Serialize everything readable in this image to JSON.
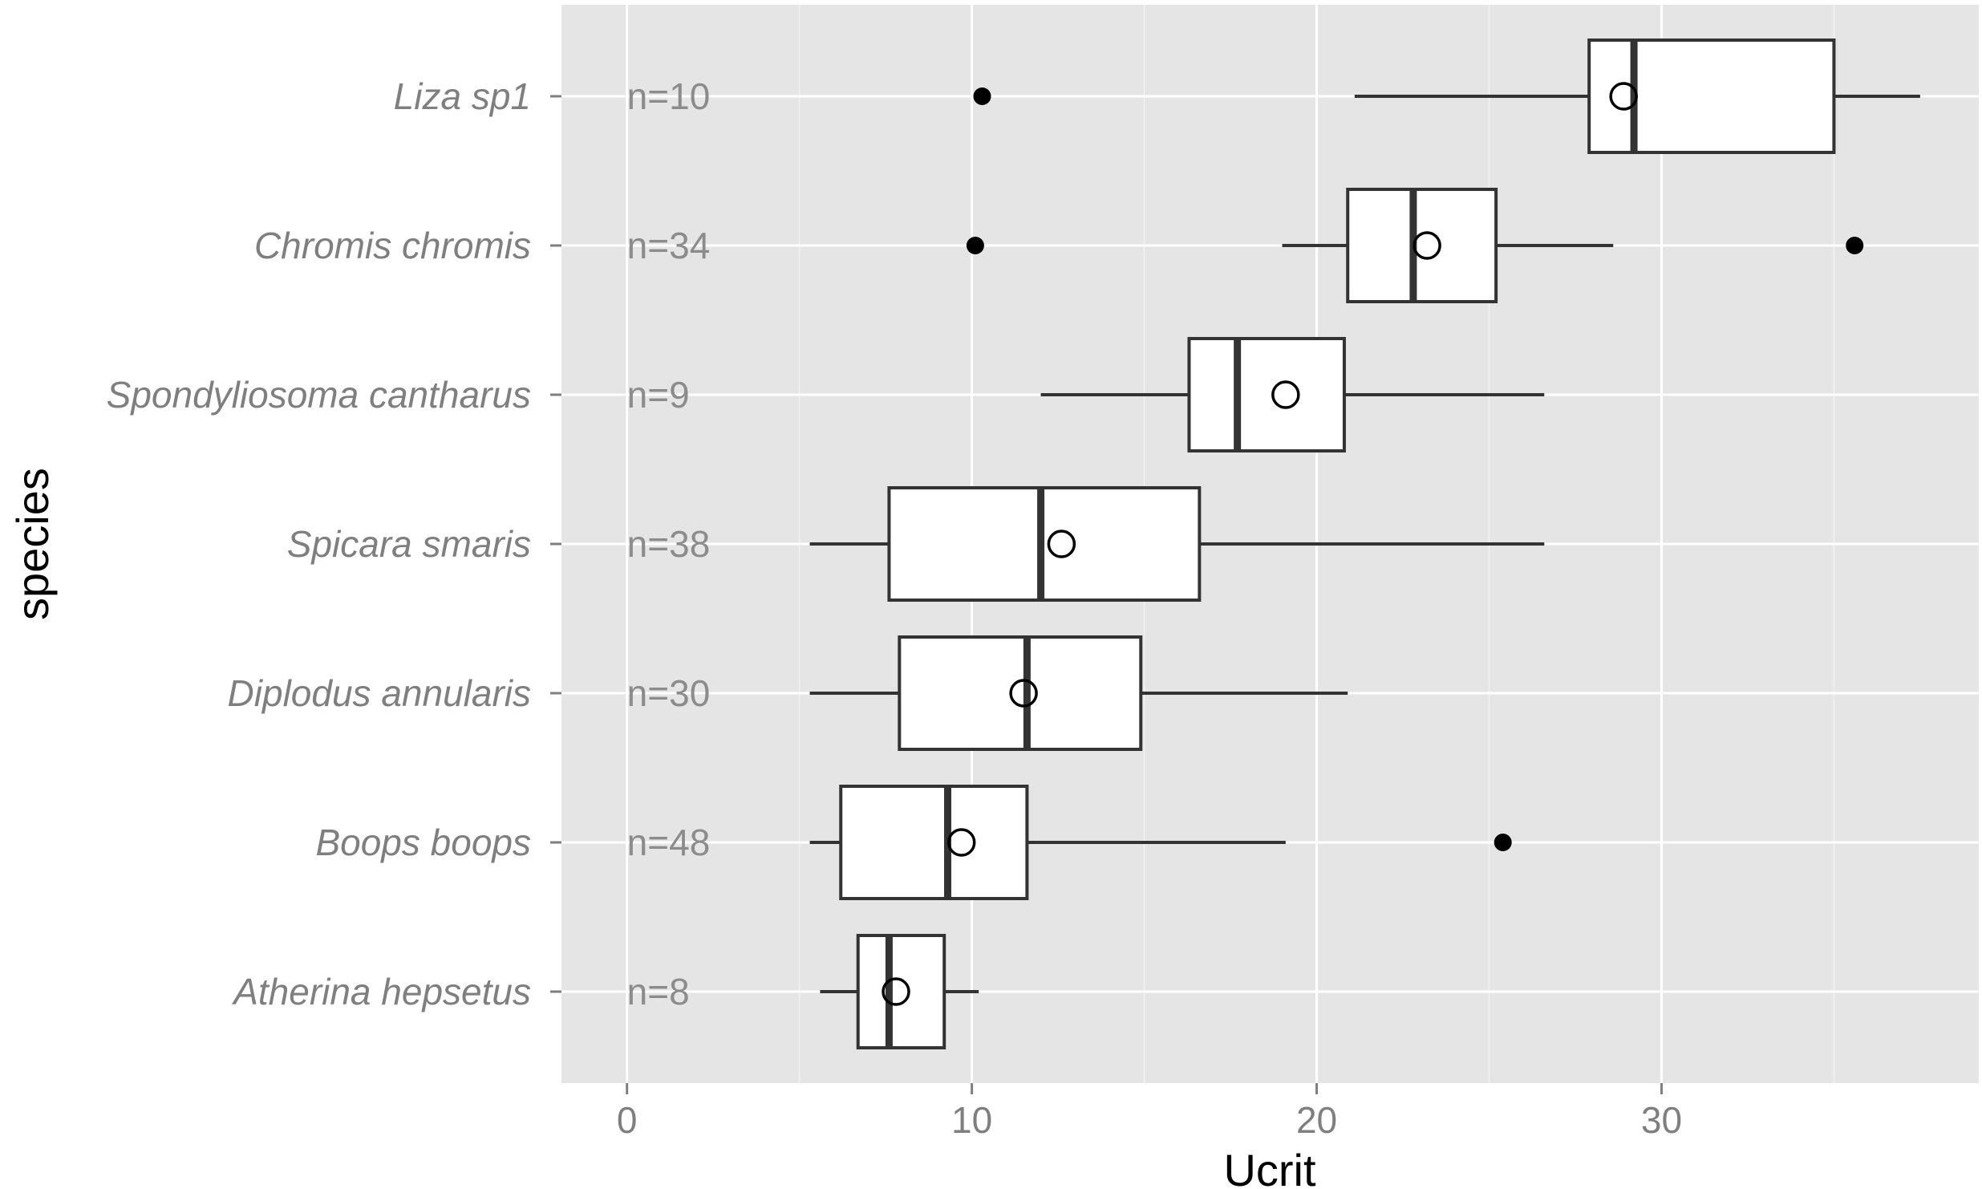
{
  "chart_data": {
    "type": "boxplot",
    "orientation": "horizontal",
    "xlabel": "Ucrit",
    "ylabel": "species",
    "xlim": [
      -1.9,
      39.2
    ],
    "x_ticks": [
      0,
      10,
      20,
      30
    ],
    "x_tick_labels": [
      "0",
      "10",
      "20",
      "30"
    ],
    "x_minor_gridlines": [
      5,
      15,
      25,
      35
    ],
    "grid": true,
    "background_color": "#e5e5e5",
    "grid_color": "#ffffff",
    "box_fill": "#ffffff",
    "box_stroke": "#333333",
    "mean_marker": "open-circle",
    "categories": [
      "Liza sp1",
      "Chromis chromis",
      "Spondyliosoma cantharus",
      "Spicara smaris",
      "Diplodus annularis",
      "Boops boops",
      "Atherina hepsetus"
    ],
    "series": [
      {
        "species": "Liza sp1",
        "n_label": "n=10",
        "whisker_low": 21.1,
        "q1": 27.9,
        "median": 29.2,
        "q3": 35.0,
        "whisker_high": 37.5,
        "mean": 28.9,
        "outliers": [
          10.3
        ]
      },
      {
        "species": "Chromis chromis",
        "n_label": "n=34",
        "whisker_low": 19.0,
        "q1": 20.9,
        "median": 22.8,
        "q3": 25.2,
        "whisker_high": 28.6,
        "mean": 23.2,
        "outliers": [
          10.1,
          35.6
        ]
      },
      {
        "species": "Spondyliosoma cantharus",
        "n_label": "n=9",
        "whisker_low": 12.0,
        "q1": 16.3,
        "median": 17.7,
        "q3": 20.8,
        "whisker_high": 26.6,
        "mean": 19.1,
        "outliers": []
      },
      {
        "species": "Spicara smaris",
        "n_label": "n=38",
        "whisker_low": 5.3,
        "q1": 7.6,
        "median": 12.0,
        "q3": 16.6,
        "whisker_high": 26.6,
        "mean": 12.6,
        "outliers": []
      },
      {
        "species": "Diplodus annularis",
        "n_label": "n=30",
        "whisker_low": 5.3,
        "q1": 7.9,
        "median": 11.6,
        "q3": 14.9,
        "whisker_high": 20.9,
        "mean": 11.5,
        "outliers": []
      },
      {
        "species": "Boops boops",
        "n_label": "n=48",
        "whisker_low": 5.3,
        "q1": 6.2,
        "median": 9.3,
        "q3": 11.6,
        "whisker_high": 19.1,
        "mean": 9.7,
        "outliers": [
          25.4
        ]
      },
      {
        "species": "Atherina hepsetus",
        "n_label": "n=8",
        "whisker_low": 5.6,
        "q1": 6.7,
        "median": 7.6,
        "q3": 9.2,
        "whisker_high": 10.2,
        "mean": 7.8,
        "outliers": []
      }
    ]
  }
}
